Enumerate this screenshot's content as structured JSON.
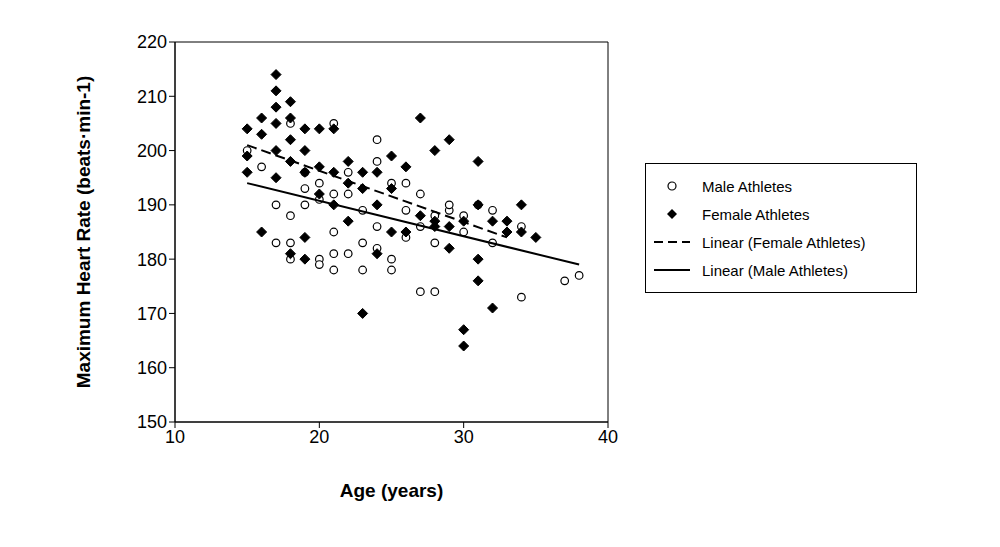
{
  "chart_data": {
    "type": "scatter",
    "x_label": "Age (years)",
    "y_label": "Maximum Heart Rate (beats·min-1)",
    "xlim": [
      10,
      40
    ],
    "xticks": [
      10,
      20,
      30,
      40
    ],
    "ylim": [
      150,
      220
    ],
    "yticks": [
      150,
      160,
      170,
      180,
      190,
      200,
      210,
      220
    ],
    "grid": false,
    "legend": "right",
    "series": [
      {
        "name": "Male Athletes",
        "type": "scatter",
        "marker": "circle",
        "color": "#000000",
        "x": [
          15,
          17,
          18,
          18,
          18,
          18,
          19,
          19,
          19,
          20,
          20,
          20,
          21,
          21,
          21,
          21,
          21,
          22,
          22,
          23,
          23,
          23,
          24,
          24,
          24,
          24,
          25,
          25,
          25,
          26,
          26,
          27,
          27,
          27,
          28,
          28,
          28,
          29,
          29,
          30,
          30,
          31,
          32,
          32,
          34,
          34,
          37,
          38,
          16,
          17,
          20,
          22,
          26
        ],
        "values": [
          200,
          183,
          205,
          188,
          183,
          180,
          196,
          193,
          190,
          180,
          179,
          194,
          205,
          192,
          181,
          178,
          185,
          192,
          181,
          189,
          178,
          183,
          202,
          198,
          186,
          182,
          194,
          180,
          178,
          194,
          189,
          192,
          186,
          174,
          174,
          188,
          183,
          189,
          190,
          188,
          185,
          190,
          189,
          183,
          186,
          173,
          176,
          177,
          197,
          190,
          191,
          196,
          184
        ]
      },
      {
        "name": "Female Athletes",
        "type": "scatter",
        "marker": "diamond",
        "color": "#000000",
        "x": [
          15,
          15,
          15,
          16,
          16,
          16,
          17,
          17,
          17,
          17,
          17,
          17,
          18,
          18,
          18,
          18,
          18,
          19,
          19,
          19,
          19,
          19,
          20,
          20,
          20,
          21,
          21,
          21,
          22,
          22,
          22,
          23,
          23,
          23,
          24,
          24,
          24,
          25,
          25,
          25,
          26,
          26,
          27,
          27,
          28,
          28,
          28,
          29,
          29,
          29,
          30,
          30,
          30,
          31,
          31,
          31,
          31,
          32,
          32,
          33,
          34,
          34,
          35,
          33
        ],
        "values": [
          204,
          199,
          196,
          206,
          203,
          185,
          214,
          211,
          208,
          205,
          200,
          195,
          209,
          206,
          202,
          198,
          181,
          204,
          200,
          196,
          180,
          184,
          204,
          197,
          192,
          204,
          196,
          190,
          198,
          187,
          194,
          196,
          170,
          193,
          196,
          190,
          181,
          199,
          193,
          185,
          197,
          185,
          206,
          188,
          200,
          187,
          186,
          202,
          186,
          182,
          167,
          164,
          187,
          198,
          190,
          180,
          176,
          171,
          187,
          187,
          190,
          185,
          184,
          185
        ]
      },
      {
        "name": "Linear (Female Athletes)",
        "type": "line",
        "line_style": "dashed",
        "color": "#000000",
        "x": [
          15,
          33
        ],
        "values": [
          201,
          184
        ]
      },
      {
        "name": "Linear (Male Athletes)",
        "type": "line",
        "line_style": "solid",
        "color": "#000000",
        "x": [
          15,
          38
        ],
        "values": [
          194,
          179
        ]
      }
    ]
  }
}
